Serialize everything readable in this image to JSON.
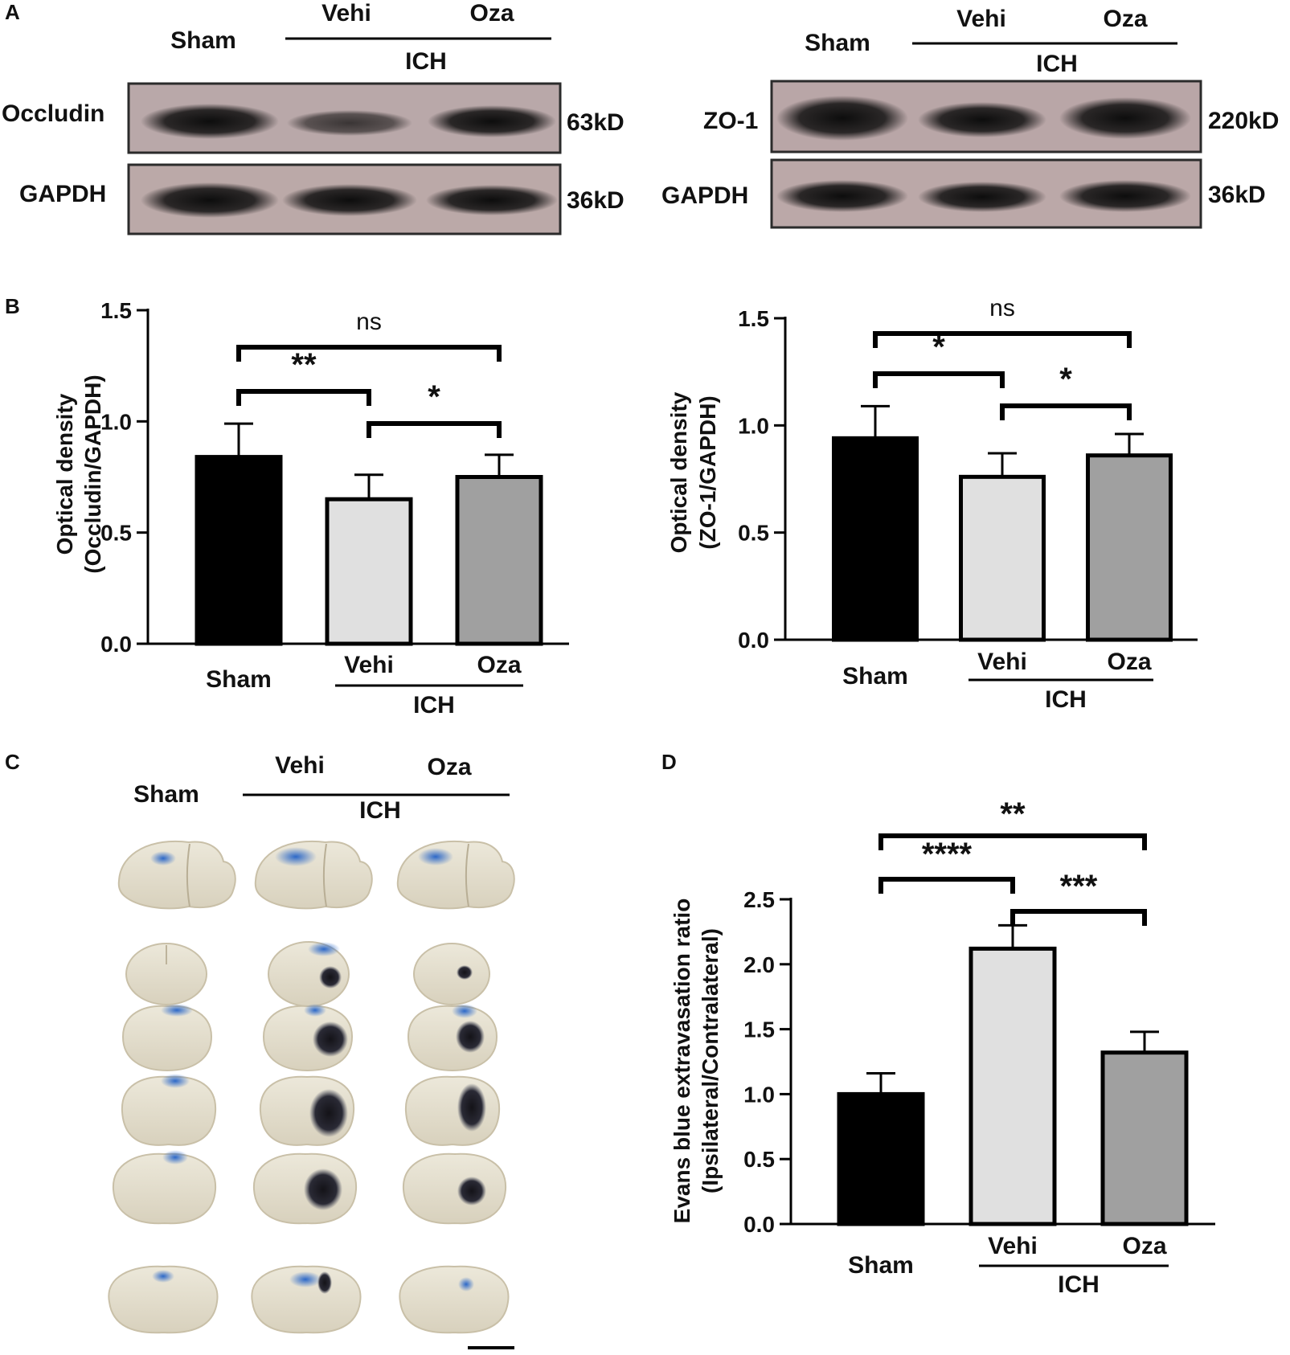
{
  "panel_letters": [
    "A",
    "B",
    "C",
    "D"
  ],
  "groups": {
    "sham": "Sham",
    "vehi": "Vehi",
    "oza": "Oza",
    "ich": "ICH"
  },
  "blots": [
    {
      "target": "Occludin",
      "target_kd": "63kD",
      "loading_control": "GAPDH",
      "loading_kd": "36kD"
    },
    {
      "target": "ZO-1",
      "target_kd": "220kD",
      "loading_control": "GAPDH",
      "loading_kd": "36kD"
    }
  ],
  "colors": {
    "sham": "#000000",
    "vehi": "#e0e0e0",
    "oza": "#a0a0a0",
    "axis": "#000000",
    "evans_blue": "#2c68c8",
    "hematoma": "#1b1a20",
    "brain": "#e4dfcf",
    "blot_bg": "#b7a3a5",
    "blot_band": "#1a1a1a"
  },
  "chart_data": [
    {
      "type": "bar",
      "panel": "B",
      "categories": [
        "Sham",
        "Vehi",
        "Oza"
      ],
      "category_group_label": "ICH",
      "values": [
        0.84,
        0.65,
        0.75
      ],
      "errors": [
        0.15,
        0.11,
        0.1
      ],
      "ylabel_line1": "Optical density",
      "ylabel_line2": "(Occludin/GAPDH)",
      "ylim": [
        0,
        1.5
      ],
      "yticks": [
        "0.0",
        "0.5",
        "1.0",
        "1.5"
      ],
      "significance": [
        {
          "from": "Sham",
          "to": "Oza",
          "label": "ns"
        },
        {
          "from": "Sham",
          "to": "Vehi",
          "label": "**"
        },
        {
          "from": "Vehi",
          "to": "Oza",
          "label": "*"
        }
      ]
    },
    {
      "type": "bar",
      "panel": "B",
      "categories": [
        "Sham",
        "Vehi",
        "Oza"
      ],
      "category_group_label": "ICH",
      "values": [
        0.94,
        0.76,
        0.86
      ],
      "errors": [
        0.15,
        0.11,
        0.1
      ],
      "ylabel_line1": "Optical density",
      "ylabel_line2": "(ZO-1/GAPDH)",
      "ylim": [
        0,
        1.5
      ],
      "yticks": [
        "0.0",
        "0.5",
        "1.0",
        "1.5"
      ],
      "significance": [
        {
          "from": "Sham",
          "to": "Oza",
          "label": "ns"
        },
        {
          "from": "Sham",
          "to": "Vehi",
          "label": "*"
        },
        {
          "from": "Vehi",
          "to": "Oza",
          "label": "*"
        }
      ]
    },
    {
      "type": "bar",
      "panel": "D",
      "categories": [
        "Sham",
        "Vehi",
        "Oza"
      ],
      "category_group_label": "ICH",
      "values": [
        1.0,
        2.12,
        1.32
      ],
      "errors": [
        0.16,
        0.18,
        0.16
      ],
      "ylabel_line1": "Evans blue extravasation ratio",
      "ylabel_line2": "(Ipsilateral/Contralateral)",
      "ylim": [
        0,
        2.5
      ],
      "yticks": [
        "0.0",
        "0.5",
        "1.0",
        "1.5",
        "2.0",
        "2.5"
      ],
      "significance": [
        {
          "from": "Sham",
          "to": "Oza",
          "label": "**"
        },
        {
          "from": "Sham",
          "to": "Vehi",
          "label": "****"
        },
        {
          "from": "Vehi",
          "to": "Oza",
          "label": "***"
        }
      ]
    }
  ]
}
